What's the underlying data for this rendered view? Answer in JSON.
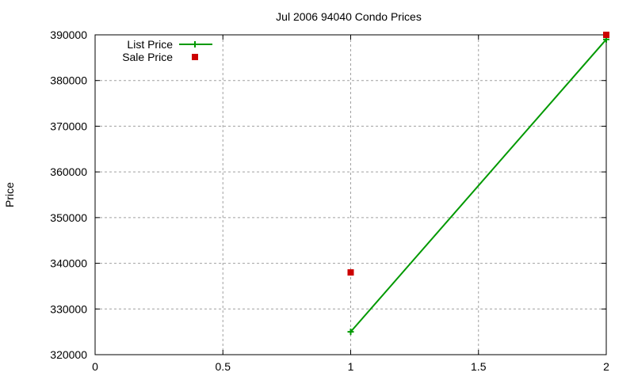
{
  "chart_data": {
    "type": "line",
    "title": "Jul 2006 94040 Condo Prices",
    "xlabel": "",
    "ylabel": "Price",
    "xlim": [
      0,
      2
    ],
    "ylim": [
      320000,
      390000
    ],
    "x_ticks": [
      "0",
      "0.5",
      "1",
      "1.5",
      "2"
    ],
    "y_ticks": [
      "320000",
      "330000",
      "340000",
      "350000",
      "360000",
      "370000",
      "380000",
      "390000"
    ],
    "grid": true,
    "legend_position": "top-left",
    "series": [
      {
        "name": "List Price",
        "style": "linespoints",
        "color": "#009900",
        "x": [
          1,
          2
        ],
        "values": [
          325000,
          389000
        ]
      },
      {
        "name": "Sale Price",
        "style": "points",
        "color": "#cc0000",
        "x": [
          1,
          2
        ],
        "values": [
          338000,
          390000
        ]
      }
    ]
  }
}
